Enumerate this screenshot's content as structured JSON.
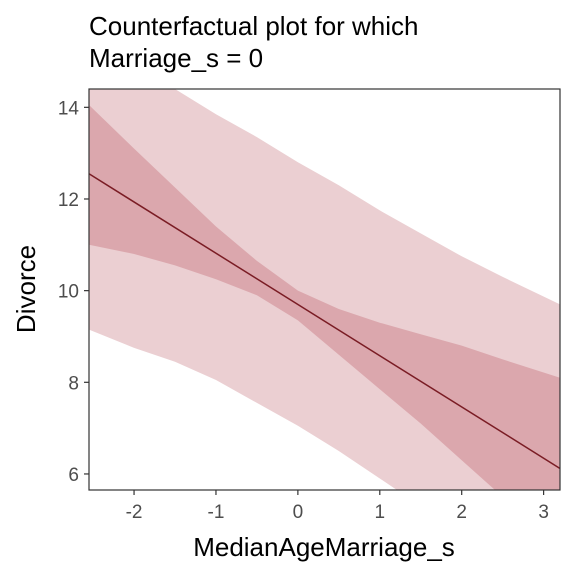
{
  "chart_data": {
    "type": "line",
    "title_lines": [
      "Counterfactual plot for which",
      "Marriage_s = 0"
    ],
    "xlabel": "MedianAgeMarriage_s",
    "ylabel": "Divorce",
    "xlim": [
      -2.55,
      3.2
    ],
    "ylim": [
      5.65,
      14.4
    ],
    "xticks": [
      -2,
      -1,
      0,
      1,
      2,
      3
    ],
    "yticks": [
      6,
      8,
      10,
      12,
      14
    ],
    "grid": false,
    "colors": {
      "line": "#7a1c24",
      "inner_band": "#dba7ad",
      "outer_band": "#ebcfd2",
      "frame": "#333333"
    },
    "mean_line": {
      "x": [
        -2.55,
        3.2
      ],
      "y": [
        12.55,
        6.12
      ]
    },
    "inner_band": {
      "x": [
        -2.55,
        -2.0,
        -1.5,
        -1.0,
        -0.5,
        0.0,
        0.5,
        1.0,
        1.5,
        2.0,
        2.5,
        3.2
      ],
      "lower": [
        11.0,
        10.8,
        10.55,
        10.25,
        9.9,
        9.35,
        8.6,
        7.85,
        7.1,
        6.3,
        5.5,
        4.8
      ],
      "upper": [
        14.05,
        13.1,
        12.25,
        11.4,
        10.65,
        10.0,
        9.6,
        9.3,
        9.05,
        8.8,
        8.5,
        8.1
      ]
    },
    "outer_band": {
      "x": [
        -2.55,
        -2.0,
        -1.5,
        -1.0,
        -0.5,
        0.0,
        0.5,
        1.0,
        1.5,
        2.0,
        2.5,
        3.2
      ],
      "lower": [
        9.15,
        8.75,
        8.45,
        8.05,
        7.55,
        7.05,
        6.5,
        5.9,
        5.3,
        4.7,
        4.1,
        3.4
      ],
      "upper": [
        15.9,
        15.0,
        14.4,
        13.85,
        13.35,
        12.8,
        12.3,
        11.75,
        11.25,
        10.75,
        10.3,
        9.7
      ]
    }
  }
}
